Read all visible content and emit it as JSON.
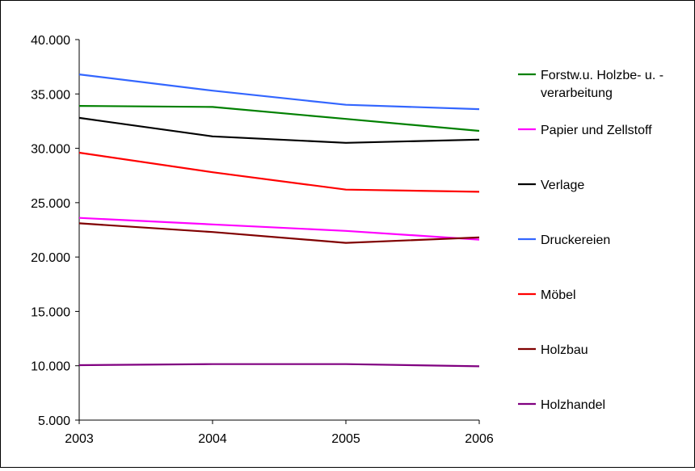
{
  "chart_data": {
    "type": "line",
    "title": "",
    "xlabel": "",
    "ylabel": "",
    "x": [
      "2003",
      "2004",
      "2005",
      "2006"
    ],
    "ylim": [
      5000,
      40000
    ],
    "yticks": [
      5000,
      10000,
      15000,
      20000,
      25000,
      30000,
      35000,
      40000
    ],
    "ytick_labels": [
      "5.000",
      "10.000",
      "15.000",
      "20.000",
      "25.000",
      "30.000",
      "35.000",
      "40.000"
    ],
    "grid": false,
    "legend_position": "right",
    "series": [
      {
        "name": "Forstw.u. Holzbe- u. -verarbeitung",
        "legend_lines": [
          "Forstw.u. Holzbe- u. -",
          "verarbeitung"
        ],
        "color": "#008000",
        "values": [
          33900,
          33800,
          32700,
          31600
        ]
      },
      {
        "name": "Papier und Zellstoff",
        "legend_lines": [
          "Papier und Zellstoff"
        ],
        "color": "#ff00ff",
        "values": [
          23600,
          23000,
          22400,
          21600
        ]
      },
      {
        "name": "Verlage",
        "legend_lines": [
          "Verlage"
        ],
        "color": "#000000",
        "values": [
          32800,
          31100,
          30500,
          30800
        ]
      },
      {
        "name": "Druckereien",
        "legend_lines": [
          "Druckereien"
        ],
        "color": "#3366ff",
        "values": [
          36800,
          35300,
          34000,
          33600
        ]
      },
      {
        "name": "Möbel",
        "legend_lines": [
          "Möbel"
        ],
        "color": "#ff0000",
        "values": [
          29600,
          27800,
          26200,
          26000
        ]
      },
      {
        "name": "Holzbau",
        "legend_lines": [
          "Holzbau"
        ],
        "color": "#800000",
        "values": [
          23100,
          22300,
          21300,
          21800
        ]
      },
      {
        "name": "Holzhandel",
        "legend_lines": [
          "Holzhandel"
        ],
        "color": "#800080",
        "values": [
          10050,
          10150,
          10150,
          9950
        ]
      }
    ]
  }
}
